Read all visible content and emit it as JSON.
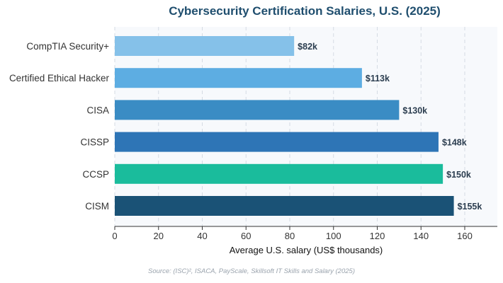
{
  "chart_data": {
    "type": "bar",
    "orientation": "horizontal",
    "title": "Cybersecurity Certification Salaries, U.S. (2025)",
    "xlabel": "Average U.S. salary (US$ thousands)",
    "ylabel": "",
    "xlim": [
      0,
      175
    ],
    "xticks": [
      0,
      20,
      40,
      60,
      80,
      100,
      120,
      140,
      160
    ],
    "grid": "vertical dashed",
    "categories": [
      "CompTIA Security+",
      "Certified Ethical Hacker",
      "CISA",
      "CISSP",
      "CCSP",
      "CISM"
    ],
    "values": [
      82,
      113,
      130,
      148,
      150,
      155
    ],
    "value_labels": [
      "$82k",
      "$113k",
      "$130k",
      "$148k",
      "$150k",
      "$155k"
    ],
    "colors": [
      "#85c1e9",
      "#5dade2",
      "#3a8cc4",
      "#2e75b6",
      "#1abc9c",
      "#1a5276"
    ]
  },
  "source": "Source: (ISC)², ISACA, PayScale, Skillsoft IT Skills and Salary (2025)"
}
